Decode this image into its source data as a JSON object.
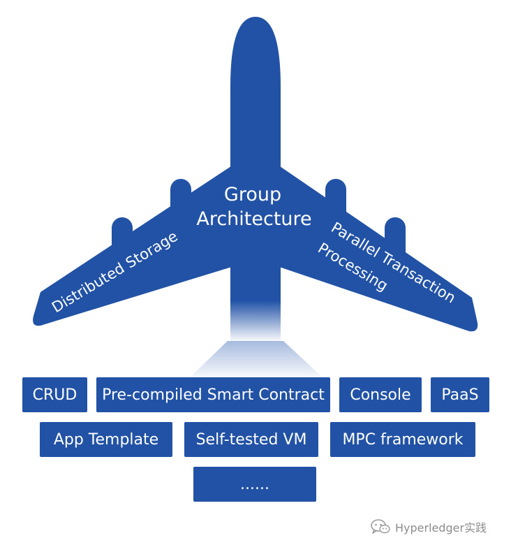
{
  "colors": {
    "accent": "#2152a6",
    "label_text": "#ffffff",
    "watermark_text": "#8d8d8d"
  },
  "airplane": {
    "center_label_line1": "Group",
    "center_label_line2": "Architecture",
    "left_wing_label": "Distributed Storage",
    "right_wing_label_line1": "Parallel Transaction",
    "right_wing_label_line2": "Processing"
  },
  "modules": {
    "row1": [
      "CRUD",
      "Pre-compiled Smart Contract",
      "Console",
      "PaaS"
    ],
    "row2": [
      "App Template",
      "Self-tested VM",
      "MPC framework"
    ],
    "row3": [
      "......"
    ]
  },
  "watermark": {
    "icon": "wechat-icon",
    "text": "Hyperledger实践"
  }
}
